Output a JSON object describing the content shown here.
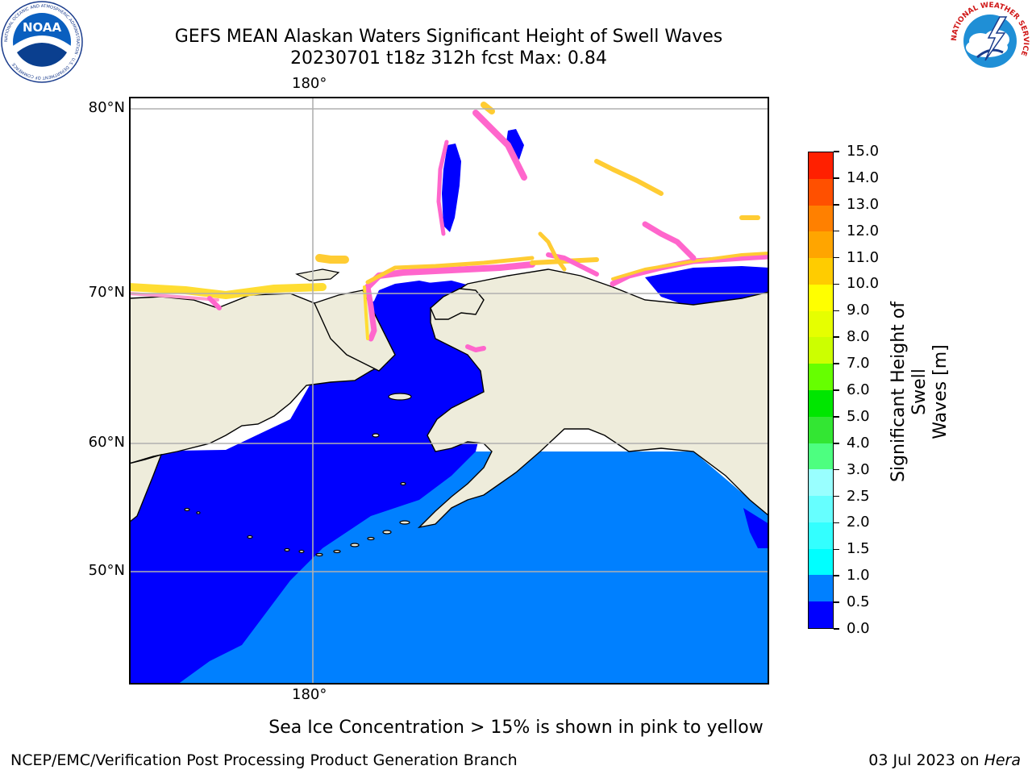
{
  "title": {
    "line1": "GEFS MEAN Alaskan Waters Significant Height of Swell Waves",
    "line2": "20230701 t18z 312h fcst   Max: 0.84"
  },
  "logos": {
    "left": {
      "text": "NOAA",
      "ring_text": "NATIONAL OCEANIC AND ATMOSPHERIC ADMINISTRATION · U.S. DEPARTMENT OF COMMERCE"
    },
    "right": {
      "ring_text": "NATIONAL WEATHER SERVICE"
    }
  },
  "map": {
    "lon_top": "180°",
    "lon_bottom": "180°",
    "lat_labels": [
      "80°N",
      "70°N",
      "60°N",
      "50°N"
    ]
  },
  "colorbar": {
    "label_line1": "Significant Height of Swell",
    "label_line2": "Waves [m]",
    "ticks": [
      "0.0",
      "0.5",
      "1.0",
      "1.5",
      "2.0",
      "2.5",
      "3.0",
      "4.0",
      "5.0",
      "6.0",
      "7.0",
      "8.0",
      "9.0",
      "10.0",
      "11.0",
      "12.0",
      "13.0",
      "14.0",
      "15.0"
    ],
    "colors": [
      "#0000ff",
      "#0080ff",
      "#00ffff",
      "#33ffff",
      "#66ffff",
      "#99ffff",
      "#4dff80",
      "#33e633",
      "#00e600",
      "#66ff00",
      "#ccff00",
      "#e6ff00",
      "#ffff00",
      "#ffcc00",
      "#ffa500",
      "#ff8000",
      "#ff5000",
      "#ff2000"
    ]
  },
  "colors": {
    "land": "#eeecdb",
    "deep_water": "#0000ff",
    "swell_water": "#0080ff",
    "ice_pink": "#ff66cc",
    "ice_yellow": "#ffdd33",
    "grid": "#b0b0b0"
  },
  "caption": "Sea Ice Concentration > 15% is shown in pink to yellow",
  "footer": {
    "left": "NCEP/EMC/Verification Post Processing Product Generation Branch",
    "right_date": "03 Jul 2023 on ",
    "right_host": "Hera"
  }
}
